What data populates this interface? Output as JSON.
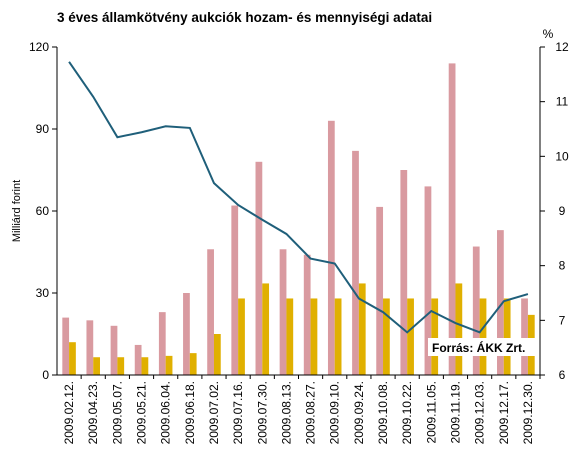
{
  "chart_data": {
    "type": "bar",
    "title": "3 éves államkötvény aukciók hozam- és mennyiségi adatai",
    "ylabel": "Milliárd forint",
    "y2label": "%",
    "annotation": "Forrás:  ÁKK Zrt.",
    "categories": [
      "2009.02.12.",
      "2009.04.23.",
      "2009.05.07.",
      "2009.05.21.",
      "2009.06.04.",
      "2009.06.18.",
      "2009.07.02.",
      "2009.07.16.",
      "2009.07.30.",
      "2009.08.13.",
      "2009.08.27.",
      "2009.09.10.",
      "2009.09.24.",
      "2009.10.08.",
      "2009.10.22.",
      "2009.11.05.",
      "2009.11.19.",
      "2009.12.03.",
      "2009.12.17.",
      "2009.12.30."
    ],
    "series": [
      {
        "type": "bar",
        "color": "#d99aa0",
        "values": [
          21,
          20,
          18,
          11,
          23,
          30,
          46,
          62,
          78,
          46,
          44,
          93,
          82,
          61.5,
          75,
          69,
          114,
          47,
          53,
          28
        ]
      },
      {
        "type": "bar",
        "color": "#e0b000",
        "values": [
          12,
          6.5,
          6.5,
          6.5,
          7,
          8,
          15,
          28,
          33.5,
          28,
          28,
          28,
          33.5,
          28,
          28,
          28,
          33.5,
          28,
          28,
          22
        ]
      },
      {
        "type": "line",
        "axis": "y2",
        "color": "#1f5f7a",
        "values": [
          11.73,
          11.09,
          10.35,
          10.44,
          10.55,
          10.52,
          9.51,
          9.11,
          8.84,
          8.58,
          8.13,
          8.04,
          7.4,
          7.15,
          6.78,
          7.17,
          6.95,
          6.78,
          7.35,
          7.48
        ]
      }
    ],
    "ylim": [
      0,
      120
    ],
    "yticks": [
      0,
      30,
      60,
      90,
      120
    ],
    "y2lim": [
      6,
      12
    ],
    "y2ticks": [
      6,
      7,
      8,
      9,
      10,
      11,
      12
    ]
  }
}
